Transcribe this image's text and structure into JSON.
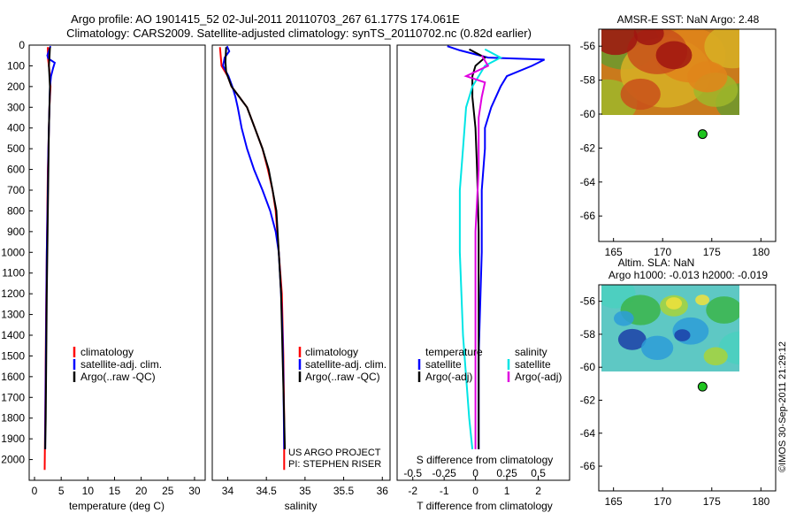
{
  "header": {
    "title_line1": "Argo profile: AO 1901415_52 02-Jul-2011 20110703_267 61.177S 174.061E",
    "title_line2": "Climatology: CARS2009. Satellite-adjusted climatology: synTS_20110702.nc (0.82d earlier)"
  },
  "footer": {
    "credit": "©IMOS 30-Sep-2011 21:29:12"
  },
  "colors": {
    "climatology": "#ff0000",
    "satellite": "#0000ff",
    "argo": "#000000",
    "salinity_sat": "#00e5e5",
    "salinity_argo": "#e000e0"
  },
  "chart_data": [
    {
      "type": "line",
      "id": "temperature",
      "xlabel": "temperature (deg C)",
      "ylabel": "",
      "xlim": [
        -1,
        32
      ],
      "ylim": [
        2100,
        0
      ],
      "xticks": [
        "0",
        "5",
        "10",
        "15",
        "20",
        "25",
        "30"
      ],
      "yticks": [
        "0",
        "100",
        "200",
        "300",
        "400",
        "500",
        "600",
        "700",
        "800",
        "900",
        "1000",
        "1100",
        "1200",
        "1300",
        "1400",
        "1500",
        "1600",
        "1700",
        "1800",
        "1900",
        "2000"
      ],
      "legend": [
        "climatology",
        "satellite-adj. clim.",
        "Argo(..raw -QC)"
      ],
      "series": [
        {
          "name": "climatology",
          "color": "#ff0000",
          "points": [
            [
              2.5,
              10
            ],
            [
              2.5,
              60
            ],
            [
              2.7,
              100
            ],
            [
              2.9,
              150
            ],
            [
              3.0,
              200
            ],
            [
              2.9,
              250
            ],
            [
              2.8,
              300
            ],
            [
              2.7,
              400
            ],
            [
              2.6,
              500
            ],
            [
              2.5,
              600
            ],
            [
              2.4,
              800
            ],
            [
              2.3,
              1000
            ],
            [
              2.2,
              1200
            ],
            [
              2.1,
              1500
            ],
            [
              2.0,
              1800
            ],
            [
              1.9,
              2050
            ]
          ]
        },
        {
          "name": "satellite-adj. clim.",
          "color": "#0000ff",
          "points": [
            [
              3.0,
              5
            ],
            [
              2.4,
              50
            ],
            [
              2.6,
              65
            ],
            [
              3.8,
              85
            ],
            [
              3.5,
              110
            ],
            [
              3.1,
              150
            ],
            [
              2.9,
              200
            ],
            [
              2.8,
              300
            ],
            [
              2.6,
              500
            ],
            [
              2.5,
              700
            ],
            [
              2.3,
              1000
            ],
            [
              2.2,
              1300
            ],
            [
              2.1,
              1600
            ],
            [
              2.0,
              1900
            ],
            [
              2.0,
              1950
            ]
          ]
        },
        {
          "name": "Argo(..raw -QC)",
          "color": "#000000",
          "points": [
            [
              2.9,
              10
            ],
            [
              2.8,
              60
            ],
            [
              2.7,
              100
            ],
            [
              2.8,
              150
            ],
            [
              2.9,
              200
            ],
            [
              2.8,
              300
            ],
            [
              2.7,
              400
            ],
            [
              2.6,
              600
            ],
            [
              2.5,
              800
            ],
            [
              2.4,
              1000
            ],
            [
              2.3,
              1200
            ],
            [
              2.2,
              1500
            ],
            [
              2.1,
              1800
            ],
            [
              2.0,
              1950
            ]
          ]
        }
      ]
    },
    {
      "type": "line",
      "id": "salinity",
      "xlabel": "salinity",
      "ylabel": "",
      "xlim": [
        33.8,
        36.1
      ],
      "ylim": [
        2100,
        0
      ],
      "xticks": [
        "34",
        "34.5",
        "35",
        "35.5",
        "36"
      ],
      "legend": [
        "climatology",
        "satellite-adj. clim.",
        "Argo(..raw -QC)"
      ],
      "annotation": [
        "US ARGO PROJECT",
        "PI: STEPHEN RISER"
      ],
      "series": [
        {
          "name": "climatology",
          "color": "#ff0000",
          "points": [
            [
              33.9,
              10
            ],
            [
              33.92,
              100
            ],
            [
              34.0,
              150
            ],
            [
              34.05,
              200
            ],
            [
              34.15,
              250
            ],
            [
              34.25,
              300
            ],
            [
              34.35,
              400
            ],
            [
              34.45,
              500
            ],
            [
              34.52,
              600
            ],
            [
              34.58,
              700
            ],
            [
              34.62,
              800
            ],
            [
              34.66,
              1000
            ],
            [
              34.7,
              1200
            ],
            [
              34.72,
              1500
            ],
            [
              34.73,
              1800
            ],
            [
              34.73,
              2050
            ]
          ]
        },
        {
          "name": "satellite-adj. clim.",
          "color": "#0000ff",
          "points": [
            [
              33.99,
              5
            ],
            [
              34.02,
              30
            ],
            [
              33.96,
              60
            ],
            [
              33.94,
              100
            ],
            [
              34.01,
              150
            ],
            [
              34.06,
              200
            ],
            [
              34.1,
              250
            ],
            [
              34.13,
              300
            ],
            [
              34.18,
              400
            ],
            [
              34.25,
              500
            ],
            [
              34.34,
              600
            ],
            [
              34.45,
              700
            ],
            [
              34.55,
              800
            ],
            [
              34.62,
              900
            ],
            [
              34.66,
              1000
            ],
            [
              34.69,
              1200
            ],
            [
              34.71,
              1400
            ],
            [
              34.72,
              1600
            ],
            [
              34.73,
              1950
            ]
          ]
        },
        {
          "name": "Argo(..raw -QC)",
          "color": "#000000",
          "points": [
            [
              33.98,
              10
            ],
            [
              33.97,
              80
            ],
            [
              33.98,
              130
            ],
            [
              34.05,
              200
            ],
            [
              34.15,
              250
            ],
            [
              34.25,
              300
            ],
            [
              34.35,
              400
            ],
            [
              34.45,
              500
            ],
            [
              34.53,
              600
            ],
            [
              34.58,
              700
            ],
            [
              34.63,
              800
            ],
            [
              34.66,
              1000
            ],
            [
              34.69,
              1200
            ],
            [
              34.71,
              1500
            ],
            [
              34.73,
              1800
            ],
            [
              34.74,
              1950
            ]
          ]
        }
      ]
    },
    {
      "type": "line",
      "id": "differences",
      "xlabel": "T difference from climatology",
      "xlabel_top": "S difference from climatology",
      "xlim": [
        -2.5,
        3.0
      ],
      "ylim": [
        2100,
        0
      ],
      "xticks": [
        "-2",
        "-1",
        "0",
        "1",
        "2"
      ],
      "xticks_top": [
        "-0.5",
        "-0.25",
        "0",
        "0.25",
        "0.5"
      ],
      "legend_temperature": {
        "heading": "temperature",
        "items": [
          "satellite",
          "Argo(-adj)"
        ]
      },
      "legend_salinity": {
        "heading": "salinity",
        "items": [
          "satellite",
          "Argo(-adj)"
        ]
      },
      "series": [
        {
          "name": "temperature satellite",
          "color": "#0000ff",
          "points": [
            [
              -0.9,
              5
            ],
            [
              -0.5,
              25
            ],
            [
              0.4,
              60
            ],
            [
              2.2,
              70
            ],
            [
              1.8,
              100
            ],
            [
              1.0,
              150
            ],
            [
              0.8,
              200
            ],
            [
              0.5,
              300
            ],
            [
              0.3,
              400
            ],
            [
              0.3,
              500
            ],
            [
              0.2,
              700
            ],
            [
              0.2,
              1000
            ],
            [
              0.1,
              1500
            ],
            [
              0.1,
              1950
            ]
          ]
        },
        {
          "name": "temperature Argo(-adj)",
          "color": "#000000",
          "points": [
            [
              -0.2,
              20
            ],
            [
              0.3,
              60
            ],
            [
              0.0,
              100
            ],
            [
              -0.1,
              150
            ],
            [
              -0.1,
              250
            ],
            [
              0.0,
              400
            ],
            [
              0.05,
              600
            ],
            [
              0.1,
              900
            ],
            [
              0.1,
              1400
            ],
            [
              0.1,
              1950
            ]
          ]
        },
        {
          "name": "salinity satellite",
          "color": "#00e5e5",
          "points": [
            [
              0.3,
              20
            ],
            [
              0.8,
              60
            ],
            [
              0.3,
              100
            ],
            [
              -0.1,
              200
            ],
            [
              -0.3,
              300
            ],
            [
              -0.4,
              500
            ],
            [
              -0.5,
              700
            ],
            [
              -0.5,
              1000
            ],
            [
              -0.4,
              1400
            ],
            [
              -0.2,
              1800
            ],
            [
              -0.1,
              1950
            ]
          ]
        },
        {
          "name": "salinity Argo(-adj)",
          "color": "#e000e0",
          "points": [
            [
              0.2,
              50
            ],
            [
              0.4,
              100
            ],
            [
              -0.3,
              150
            ],
            [
              0.3,
              180
            ],
            [
              0.2,
              250
            ],
            [
              0.1,
              350
            ],
            [
              0.1,
              600
            ],
            [
              0.0,
              900
            ],
            [
              0.0,
              1400
            ],
            [
              0.0,
              1950
            ]
          ]
        }
      ]
    },
    {
      "type": "heatmap",
      "id": "sst_map",
      "title": "AMSR-E SST: NaN Argo: 2.48",
      "xlim": [
        163.5,
        181.5
      ],
      "ylim": [
        -67.5,
        -55
      ],
      "xticks": [
        "165",
        "170",
        "175",
        "180"
      ],
      "yticks": [
        "-56",
        "-58",
        "-60",
        "-62",
        "-64",
        "-66"
      ],
      "data_extent": {
        "lon": [
          163.5,
          180.5
        ],
        "lat": [
          -60.1,
          -55
        ]
      },
      "argo_position": {
        "lon": 174.061,
        "lat": -61.177
      },
      "palette": [
        "#6b9a2e",
        "#9fb72a",
        "#d7b025",
        "#e0851a",
        "#c9501a",
        "#a01510"
      ]
    },
    {
      "type": "heatmap",
      "id": "sla_map",
      "title": "Altim. SLA: NaN",
      "subtitle": "Argo h1000: -0.013 h2000: -0.019",
      "xlim": [
        163.5,
        181.5
      ],
      "ylim": [
        -67.5,
        -55
      ],
      "xticks": [
        "165",
        "170",
        "175",
        "180"
      ],
      "yticks": [
        "-56",
        "-58",
        "-60",
        "-62",
        "-64",
        "-66"
      ],
      "data_extent": {
        "lon": [
          163.5,
          180.5
        ],
        "lat": [
          -60.1,
          -55
        ]
      },
      "argo_position": {
        "lon": 174.061,
        "lat": -61.177
      },
      "palette": [
        "#1c3fa8",
        "#2d9cd8",
        "#4ad0c0",
        "#3bb54a",
        "#a8d43a",
        "#f1e23c"
      ]
    }
  ]
}
